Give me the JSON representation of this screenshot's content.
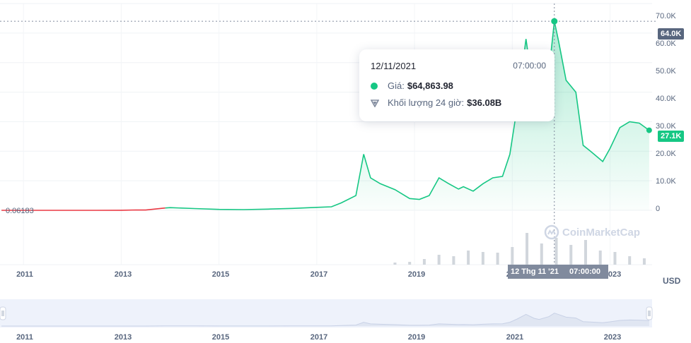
{
  "chart_data": {
    "type": "area",
    "currency_label": "USD",
    "y_axis": {
      "ticks": [
        "0",
        "10.0K",
        "20.0K",
        "30.0K",
        "40.0K",
        "50.0K",
        "60.0K",
        "70.0K"
      ],
      "min": 0,
      "max": 70000
    },
    "x_axis": {
      "labels": [
        "2011",
        "2013",
        "2015",
        "2017",
        "2019",
        "2021",
        "2023"
      ]
    },
    "navigator_labels": [
      "2011",
      "2013",
      "2015",
      "2017",
      "2019",
      "2021",
      "2023"
    ],
    "start_value_label": "0.06183",
    "max_tag": "64.0K",
    "current_tag": "27.1K",
    "crosshair_date_label": "12 Thg 11 '21",
    "crosshair_time_label": "07:00:00",
    "series": [
      {
        "x": [
          2010.55,
          2011.0,
          2011.5,
          2012.0,
          2012.5,
          2013.0,
          2013.3,
          2013.5,
          2013.9,
          2014.0,
          2014.5,
          2015.0,
          2015.5,
          2016.0,
          2016.5,
          2017.0,
          2017.3,
          2017.5,
          2017.8,
          2017.96,
          2018.1,
          2018.3,
          2018.6,
          2018.9,
          2019.1,
          2019.3,
          2019.5,
          2019.7,
          2019.9,
          2020.0,
          2020.2,
          2020.4,
          2020.6,
          2020.8,
          2020.95,
          2021.1,
          2021.28,
          2021.45,
          2021.55,
          2021.75,
          2021.86,
          2021.95,
          2022.1,
          2022.3,
          2022.45,
          2022.6,
          2022.85,
          2023.0,
          2023.2,
          2023.4,
          2023.6,
          2023.8
        ],
        "y": [
          0.06,
          0.3,
          10,
          5,
          7,
          13,
          120,
          100,
          800,
          900,
          600,
          300,
          250,
          400,
          650,
          1000,
          1200,
          2500,
          5000,
          19000,
          11000,
          9000,
          7000,
          4000,
          3700,
          5000,
          11000,
          9000,
          7200,
          8000,
          6500,
          9000,
          11000,
          11500,
          19000,
          35000,
          58000,
          38000,
          33000,
          47000,
          64000,
          57000,
          44000,
          40000,
          22000,
          20000,
          16500,
          21000,
          28000,
          30000,
          29500,
          27100
        ]
      },
      {
        "name": "volume",
        "x": [
          2018.6,
          2018.9,
          2019.2,
          2019.5,
          2019.8,
          2020.1,
          2020.4,
          2020.7,
          2021.0,
          2021.3,
          2021.6,
          2021.9,
          2022.2,
          2022.5,
          2022.8,
          2023.1,
          2023.4,
          2023.7
        ],
        "y": [
          3,
          4,
          8,
          14,
          12,
          20,
          18,
          17,
          25,
          45,
          30,
          38,
          28,
          35,
          20,
          18,
          12,
          9
        ]
      }
    ],
    "tooltip": {
      "date": "12/11/2021",
      "time": "07:00:00",
      "price_label": "Giá:",
      "price_value": "$64,863.98",
      "volume_label": "Khối lượng 24 giờ:",
      "volume_value": "$36.08B"
    },
    "watermark": "CoinMarketCap",
    "colors": {
      "line": "#16c784",
      "pre_line": "#ea3943",
      "axis_tag": "#58667e",
      "navigator": "#eef2fb"
    }
  }
}
